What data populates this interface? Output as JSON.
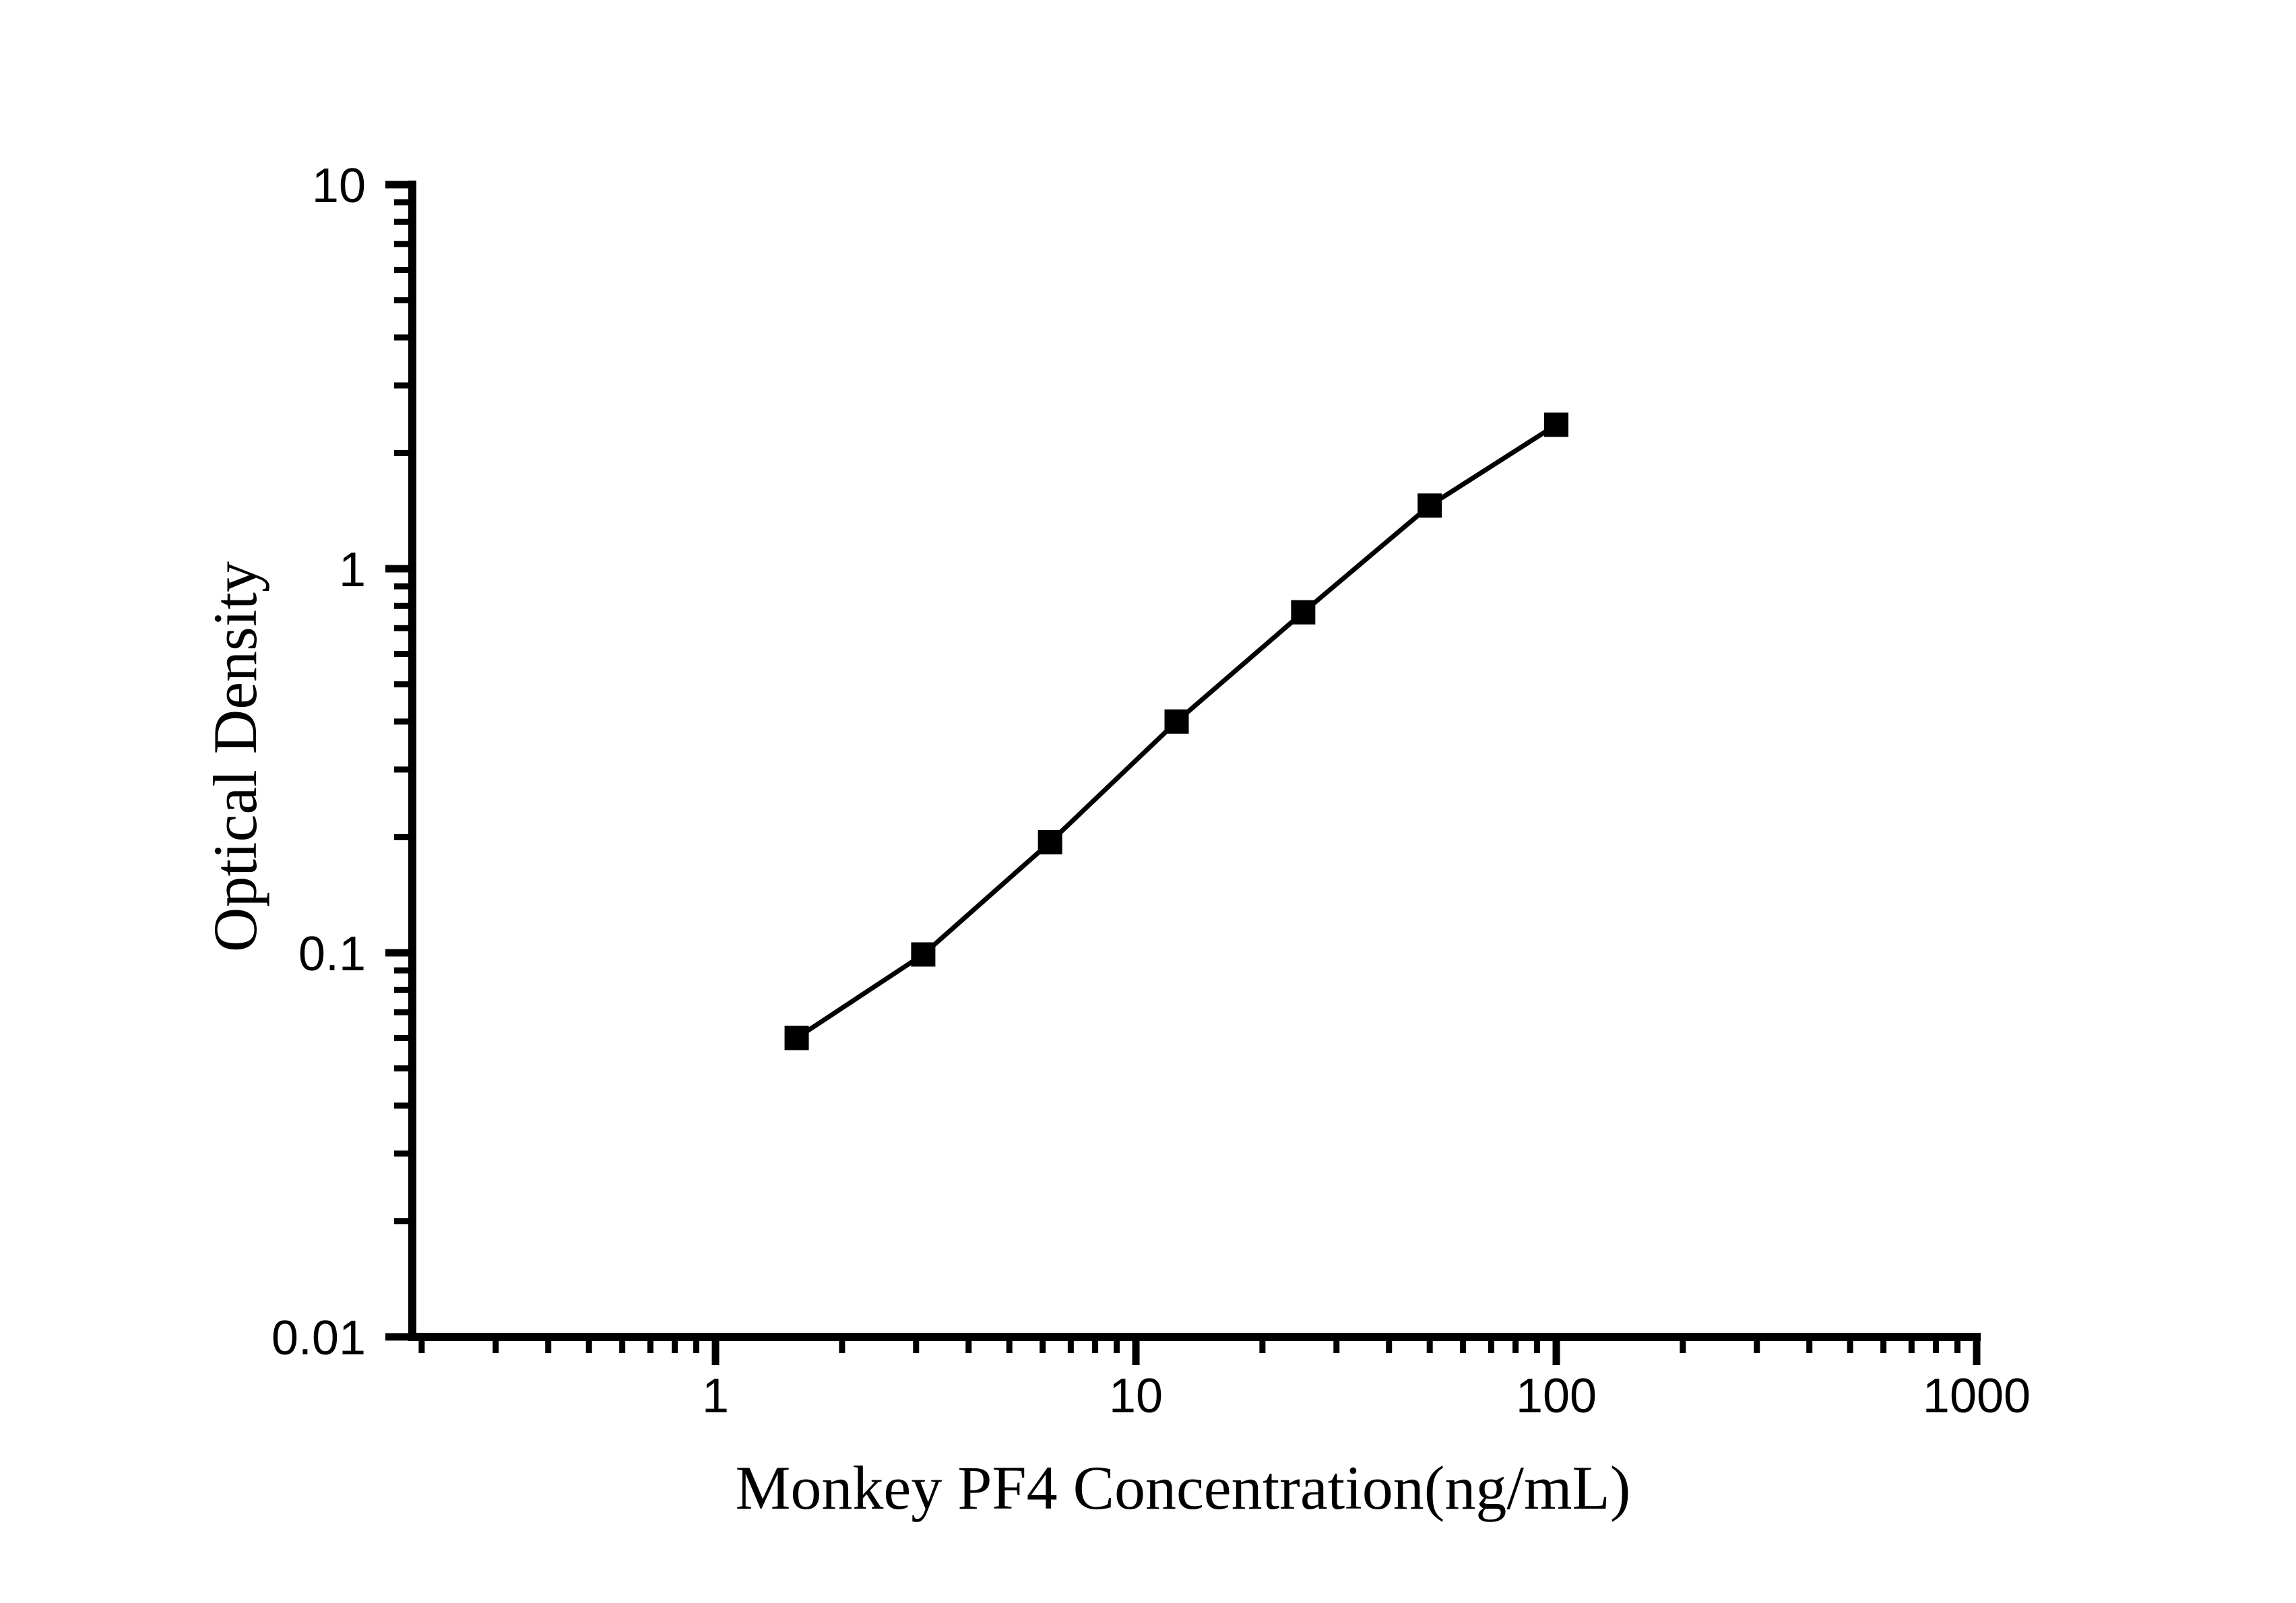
{
  "page": {
    "background_color": "#ffffff",
    "foreground_color": "#000000"
  },
  "chart_data": {
    "type": "line",
    "title": "",
    "xlabel": "Monkey PF4 Concentration(ng/mL)",
    "ylabel": "Optical Density",
    "xscale": "log",
    "yscale": "log",
    "xlim": [
      0.19,
      1000
    ],
    "ylim": [
      0.01,
      10
    ],
    "grid": false,
    "legend_position": "none",
    "marker": "filled-square",
    "marker_color": "#000000",
    "line_color": "#000000",
    "series": [
      {
        "x": [
          1.56,
          3.12,
          6.25,
          12.5,
          25,
          50,
          100
        ],
        "y": [
          0.06,
          0.099,
          0.194,
          0.4,
          0.77,
          1.46,
          2.37
        ]
      }
    ],
    "x_ticks": [
      {
        "v": 1,
        "label": "1"
      },
      {
        "v": 10,
        "label": "10"
      },
      {
        "v": 100,
        "label": "100"
      },
      {
        "v": 1000,
        "label": "1000"
      }
    ],
    "y_ticks": [
      {
        "v": 10,
        "label": "10"
      },
      {
        "v": 1,
        "label": "1"
      },
      {
        "v": 0.1,
        "label": "0.1"
      },
      {
        "v": 0.01,
        "label": "0.01"
      }
    ]
  }
}
